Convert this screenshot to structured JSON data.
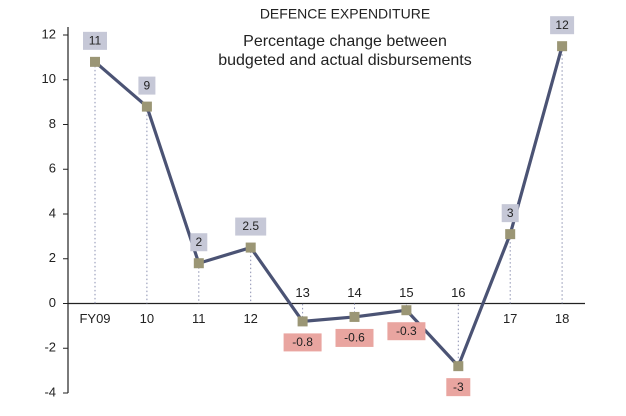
{
  "chart_data": {
    "type": "line",
    "title": "DEFENCE EXPENDITURE",
    "subtitle": [
      "Percentage change between",
      "budgeted and actual disbursements"
    ],
    "categories": [
      "FY09",
      "10",
      "11",
      "12",
      "13",
      "14",
      "15",
      "16",
      "17",
      "18"
    ],
    "values": [
      10.8,
      8.8,
      1.8,
      2.5,
      -0.8,
      -0.6,
      -0.3,
      -2.8,
      3.1,
      11.5
    ],
    "value_labels": [
      "11",
      "9",
      "2",
      "2.5",
      "-0.8",
      "-0.6",
      "-0.3",
      "-3",
      "3",
      "12"
    ],
    "color": "#4b5374",
    "marker_color": "#9b9675",
    "positive_label_color": "#c6c8d7",
    "negative_label_color": "#e9a5a0",
    "ylim": [
      -4,
      12
    ],
    "yticks": [
      -4,
      -2,
      0,
      2,
      4,
      6,
      8,
      10,
      12
    ],
    "grid": false
  }
}
